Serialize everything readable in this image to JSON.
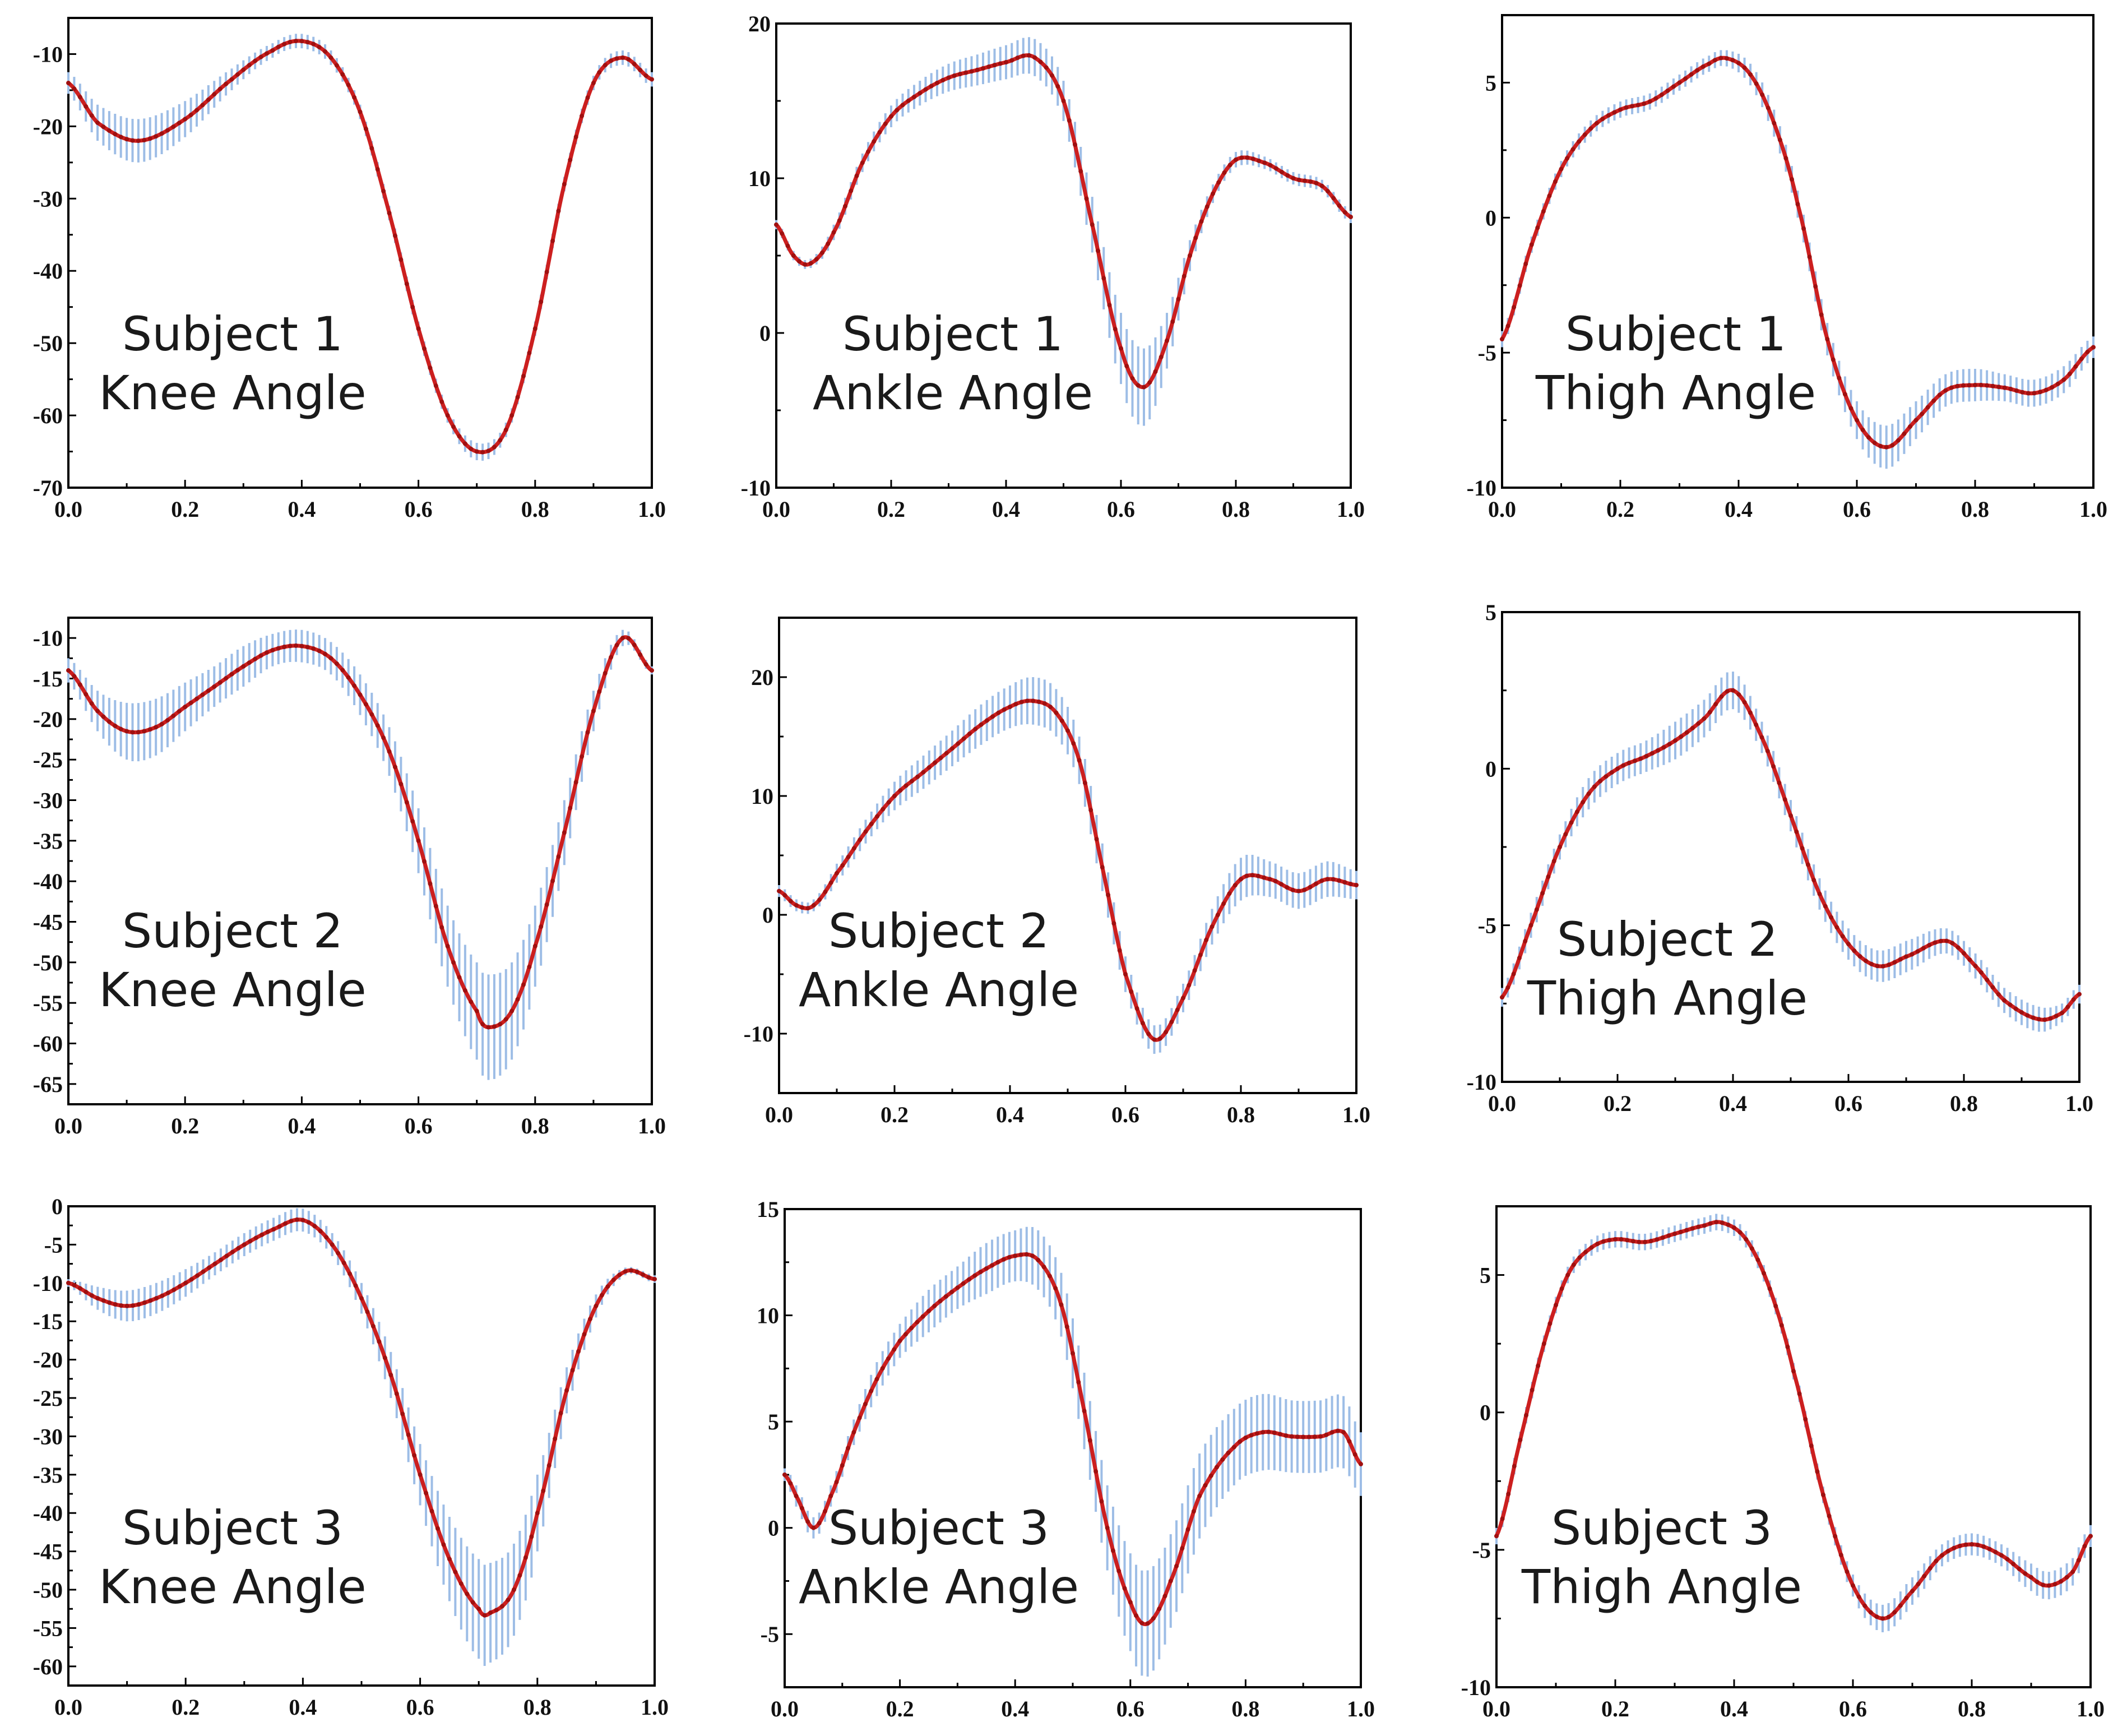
{
  "colors": {
    "mean_line": "#cc1f1f",
    "error_band": "#9dbde6",
    "axes": "#000000"
  },
  "chart_data": [
    {
      "type": "line",
      "subject": "Subject 1",
      "joint": "Knee Angle",
      "xlim": [
        0,
        1
      ],
      "ylim": [
        -70,
        -5
      ],
      "xticks": [
        "0.0",
        "0.2",
        "0.4",
        "0.6",
        "0.8",
        "1.0"
      ],
      "yticks": [
        -70,
        -60,
        -50,
        -40,
        -30,
        -20,
        -10
      ],
      "series": [
        {
          "name": "mean",
          "x": [
            0,
            0.05,
            0.12,
            0.2,
            0.28,
            0.35,
            0.4,
            0.45,
            0.5,
            0.55,
            0.6,
            0.65,
            0.7,
            0.75,
            0.8,
            0.85,
            0.9,
            0.95,
            1.0
          ],
          "y": [
            -14,
            -19.5,
            -22,
            -19,
            -13.5,
            -9.5,
            -8.2,
            -10.5,
            -18,
            -32,
            -48,
            -60,
            -65,
            -62,
            -48,
            -28,
            -14,
            -10.5,
            -13.5
          ],
          "sd": [
            1.5,
            2.5,
            3,
            2.5,
            1.5,
            1,
            1,
            1,
            1,
            1,
            1,
            1,
            1.2,
            1,
            1,
            1,
            1,
            1,
            1
          ]
        }
      ]
    },
    {
      "type": "line",
      "subject": "Subject 1",
      "joint": "Ankle Angle",
      "xlim": [
        0,
        1
      ],
      "ylim": [
        -10,
        20
      ],
      "xticks": [
        "0.0",
        "0.2",
        "0.4",
        "0.6",
        "0.8",
        "1.0"
      ],
      "yticks": [
        -10,
        0,
        10,
        20
      ],
      "series": [
        {
          "name": "mean",
          "x": [
            0,
            0.03,
            0.06,
            0.1,
            0.15,
            0.2,
            0.25,
            0.3,
            0.35,
            0.4,
            0.45,
            0.5,
            0.55,
            0.6,
            0.64,
            0.68,
            0.72,
            0.76,
            0.8,
            0.85,
            0.9,
            0.95,
            1.0
          ],
          "y": [
            7,
            5,
            4.5,
            6.5,
            11,
            14,
            15.5,
            16.5,
            17,
            17.5,
            17.8,
            15,
            7,
            -1,
            -3.5,
            -0.5,
            5,
            9,
            11.2,
            11,
            10,
            9.5,
            7.5
          ],
          "sd": [
            0.3,
            0.3,
            0.3,
            0.5,
            0.6,
            0.7,
            0.8,
            0.9,
            1,
            1.1,
            1.2,
            1.3,
            1.8,
            2.3,
            2.5,
            1.8,
            1,
            0.6,
            0.5,
            0.4,
            0.4,
            0.4,
            0.4
          ]
        }
      ]
    },
    {
      "type": "line",
      "subject": "Subject 1",
      "joint": "Thigh Angle",
      "xlim": [
        0,
        1
      ],
      "ylim": [
        -10,
        7.5
      ],
      "xticks": [
        "0.0",
        "0.2",
        "0.4",
        "0.6",
        "0.8",
        "1.0"
      ],
      "yticks": [
        -10,
        -5,
        0,
        5
      ],
      "series": [
        {
          "name": "mean",
          "x": [
            0,
            0.05,
            0.1,
            0.15,
            0.2,
            0.25,
            0.3,
            0.35,
            0.38,
            0.42,
            0.46,
            0.5,
            0.55,
            0.6,
            0.65,
            0.7,
            0.75,
            0.8,
            0.85,
            0.9,
            0.95,
            1.0
          ],
          "y": [
            -4.5,
            -1,
            1.8,
            3.3,
            4,
            4.3,
            5,
            5.7,
            5.9,
            5.3,
            3.5,
            0.5,
            -4.5,
            -7.5,
            -8.5,
            -7.5,
            -6.4,
            -6.2,
            -6.3,
            -6.5,
            -6,
            -4.8
          ],
          "sd": [
            0.3,
            0.3,
            0.3,
            0.3,
            0.3,
            0.3,
            0.3,
            0.3,
            0.3,
            0.4,
            0.5,
            0.5,
            0.6,
            0.7,
            0.8,
            0.7,
            0.6,
            0.6,
            0.5,
            0.5,
            0.5,
            0.4
          ]
        }
      ]
    },
    {
      "type": "line",
      "subject": "Subject 2",
      "joint": "Knee Angle",
      "xlim": [
        0,
        1
      ],
      "ylim": [
        -67.5,
        -7.5
      ],
      "xticks": [
        "0.0",
        "0.2",
        "0.4",
        "0.6",
        "0.8",
        "1.0"
      ],
      "yticks": [
        -65,
        -60,
        -55,
        -50,
        -45,
        -40,
        -35,
        -30,
        -25,
        -20,
        -15,
        -10
      ],
      "series": [
        {
          "name": "mean",
          "x": [
            0,
            0.05,
            0.1,
            0.15,
            0.2,
            0.25,
            0.3,
            0.35,
            0.4,
            0.45,
            0.5,
            0.55,
            0.6,
            0.65,
            0.7,
            0.72,
            0.76,
            0.8,
            0.85,
            0.9,
            0.95,
            1.0
          ],
          "y": [
            -14,
            -19,
            -21.5,
            -21,
            -18.5,
            -16,
            -13.5,
            -11.5,
            -11,
            -12.5,
            -17,
            -24,
            -35,
            -48,
            -56,
            -58,
            -56,
            -48,
            -34,
            -19,
            -10,
            -14
          ],
          "sd": [
            1.5,
            2.5,
            3.5,
            3.5,
            3,
            2.5,
            2.5,
            2,
            2,
            2,
            2.5,
            3,
            4,
            5,
            6,
            6.5,
            6,
            5,
            4,
            2.5,
            1,
            0.5
          ]
        }
      ]
    },
    {
      "type": "line",
      "subject": "Subject 2",
      "joint": "Ankle Angle",
      "xlim": [
        0,
        1
      ],
      "ylim": [
        -15,
        25
      ],
      "xticks": [
        "0.0",
        "0.2",
        "0.4",
        "0.6",
        "0.8",
        "1.0"
      ],
      "yticks": [
        -10,
        0,
        10,
        20
      ],
      "series": [
        {
          "name": "mean",
          "x": [
            0,
            0.03,
            0.06,
            0.1,
            0.15,
            0.2,
            0.25,
            0.3,
            0.35,
            0.4,
            0.44,
            0.48,
            0.52,
            0.56,
            0.6,
            0.65,
            0.7,
            0.75,
            0.8,
            0.85,
            0.9,
            0.95,
            1.0
          ],
          "y": [
            2,
            0.8,
            0.8,
            3.5,
            7,
            10,
            12,
            14,
            16,
            17.5,
            18,
            17,
            13,
            4,
            -5,
            -10.5,
            -7,
            -1,
            3,
            3,
            2,
            3,
            2.5
          ],
          "sd": [
            0.5,
            0.5,
            0.5,
            0.8,
            1,
            1.2,
            1.4,
            1.5,
            1.7,
            1.8,
            2,
            2,
            2,
            2,
            1.5,
            1.2,
            1.2,
            1.5,
            1.8,
            1.5,
            1.5,
            1.5,
            1.2
          ]
        }
      ]
    },
    {
      "type": "line",
      "subject": "Subject 2",
      "joint": "Thigh Angle",
      "xlim": [
        0,
        1
      ],
      "ylim": [
        -10,
        5
      ],
      "xticks": [
        "0.0",
        "0.2",
        "0.4",
        "0.6",
        "0.8",
        "1.0"
      ],
      "yticks": [
        -10,
        -5,
        0,
        5
      ],
      "series": [
        {
          "name": "mean",
          "x": [
            0,
            0.05,
            0.1,
            0.15,
            0.2,
            0.25,
            0.3,
            0.35,
            0.4,
            0.45,
            0.5,
            0.55,
            0.6,
            0.65,
            0.7,
            0.77,
            0.82,
            0.87,
            0.93,
            0.97,
            1.0
          ],
          "y": [
            -7.3,
            -5,
            -2.5,
            -0.8,
            0,
            0.4,
            0.9,
            1.6,
            2.5,
            1,
            -1.5,
            -4,
            -5.6,
            -6.3,
            -6,
            -5.5,
            -6.3,
            -7.4,
            -8,
            -7.8,
            -7.2
          ],
          "sd": [
            0.3,
            0.4,
            0.4,
            0.5,
            0.5,
            0.5,
            0.6,
            0.6,
            0.6,
            0.5,
            0.5,
            0.5,
            0.5,
            0.5,
            0.5,
            0.4,
            0.4,
            0.4,
            0.4,
            0.3,
            0.3
          ]
        }
      ]
    },
    {
      "type": "line",
      "subject": "Subject 3",
      "joint": "Knee Angle",
      "xlim": [
        0,
        1
      ],
      "ylim": [
        -62.5,
        0
      ],
      "xticks": [
        "0.0",
        "0.2",
        "0.4",
        "0.6",
        "0.8",
        "1.0"
      ],
      "yticks": [
        -60,
        -55,
        -50,
        -45,
        -40,
        -35,
        -30,
        -25,
        -20,
        -15,
        -10,
        -5,
        0
      ],
      "series": [
        {
          "name": "mean",
          "x": [
            0,
            0.05,
            0.1,
            0.15,
            0.2,
            0.25,
            0.3,
            0.35,
            0.4,
            0.45,
            0.5,
            0.55,
            0.6,
            0.65,
            0.7,
            0.72,
            0.76,
            0.8,
            0.85,
            0.9,
            0.95,
            1.0
          ],
          "y": [
            -10,
            -12,
            -13,
            -12,
            -10,
            -7.5,
            -5,
            -3,
            -1.8,
            -5,
            -12,
            -22,
            -35,
            -46,
            -52.5,
            -53,
            -50,
            -40,
            -24,
            -13,
            -8.5,
            -9.5
          ],
          "sd": [
            0.5,
            1.5,
            2,
            2,
            1.8,
            1.5,
            1.5,
            1.5,
            1.5,
            1.5,
            2,
            3,
            4,
            5.5,
            6.5,
            6.5,
            6,
            5,
            3,
            1.5,
            0.5,
            0.5
          ]
        }
      ]
    },
    {
      "type": "line",
      "subject": "Subject 3",
      "joint": "Ankle Angle",
      "xlim": [
        0,
        1
      ],
      "ylim": [
        -7.5,
        15
      ],
      "xticks": [
        "0.0",
        "0.2",
        "0.4",
        "0.6",
        "0.8",
        "1.0"
      ],
      "yticks": [
        -5,
        0,
        5,
        10,
        15
      ],
      "series": [
        {
          "name": "mean",
          "x": [
            0,
            0.02,
            0.05,
            0.08,
            0.12,
            0.16,
            0.2,
            0.25,
            0.3,
            0.35,
            0.4,
            0.44,
            0.48,
            0.52,
            0.56,
            0.6,
            0.63,
            0.67,
            0.72,
            0.78,
            0.83,
            0.88,
            0.93,
            0.97,
            1.0
          ],
          "y": [
            2.5,
            1.5,
            0,
            1.5,
            4.5,
            7,
            8.8,
            10.2,
            11.3,
            12.2,
            12.8,
            12.6,
            10.5,
            5.5,
            0,
            -3.5,
            -4.5,
            -2.5,
            1.5,
            3.8,
            4.5,
            4.3,
            4.3,
            4.5,
            3
          ],
          "sd": [
            0.3,
            0.5,
            0.5,
            0.5,
            0.6,
            0.8,
            0.8,
            1,
            1,
            1.2,
            1.2,
            1.4,
            1.5,
            1.8,
            2,
            2.3,
            2.5,
            2.2,
            2,
            1.8,
            1.8,
            1.7,
            1.7,
            1.7,
            1.5
          ]
        }
      ]
    },
    {
      "type": "line",
      "subject": "Subject 3",
      "joint": "Thigh Angle",
      "xlim": [
        0,
        1
      ],
      "ylim": [
        -10,
        7.5
      ],
      "xticks": [
        "0.0",
        "0.2",
        "0.4",
        "0.6",
        "0.8",
        "1.0"
      ],
      "yticks": [
        -10,
        -5,
        0,
        5
      ],
      "series": [
        {
          "name": "mean",
          "x": [
            0,
            0.04,
            0.08,
            0.12,
            0.16,
            0.2,
            0.25,
            0.3,
            0.35,
            0.38,
            0.42,
            0.46,
            0.5,
            0.55,
            0.6,
            0.65,
            0.7,
            0.75,
            0.8,
            0.85,
            0.9,
            0.93,
            0.97,
            1.0
          ],
          "y": [
            -4.5,
            -1,
            2.5,
            5,
            6,
            6.3,
            6.2,
            6.5,
            6.8,
            6.9,
            6.3,
            4.5,
            1.5,
            -3,
            -6.3,
            -7.5,
            -6.5,
            -5.2,
            -4.8,
            -5.2,
            -6,
            -6.3,
            -5.8,
            -4.5
          ],
          "sd": [
            0.3,
            0.3,
            0.3,
            0.3,
            0.3,
            0.3,
            0.3,
            0.3,
            0.3,
            0.3,
            0.3,
            0.3,
            0.3,
            0.3,
            0.4,
            0.5,
            0.5,
            0.4,
            0.4,
            0.4,
            0.5,
            0.5,
            0.5,
            0.4
          ]
        }
      ]
    }
  ]
}
